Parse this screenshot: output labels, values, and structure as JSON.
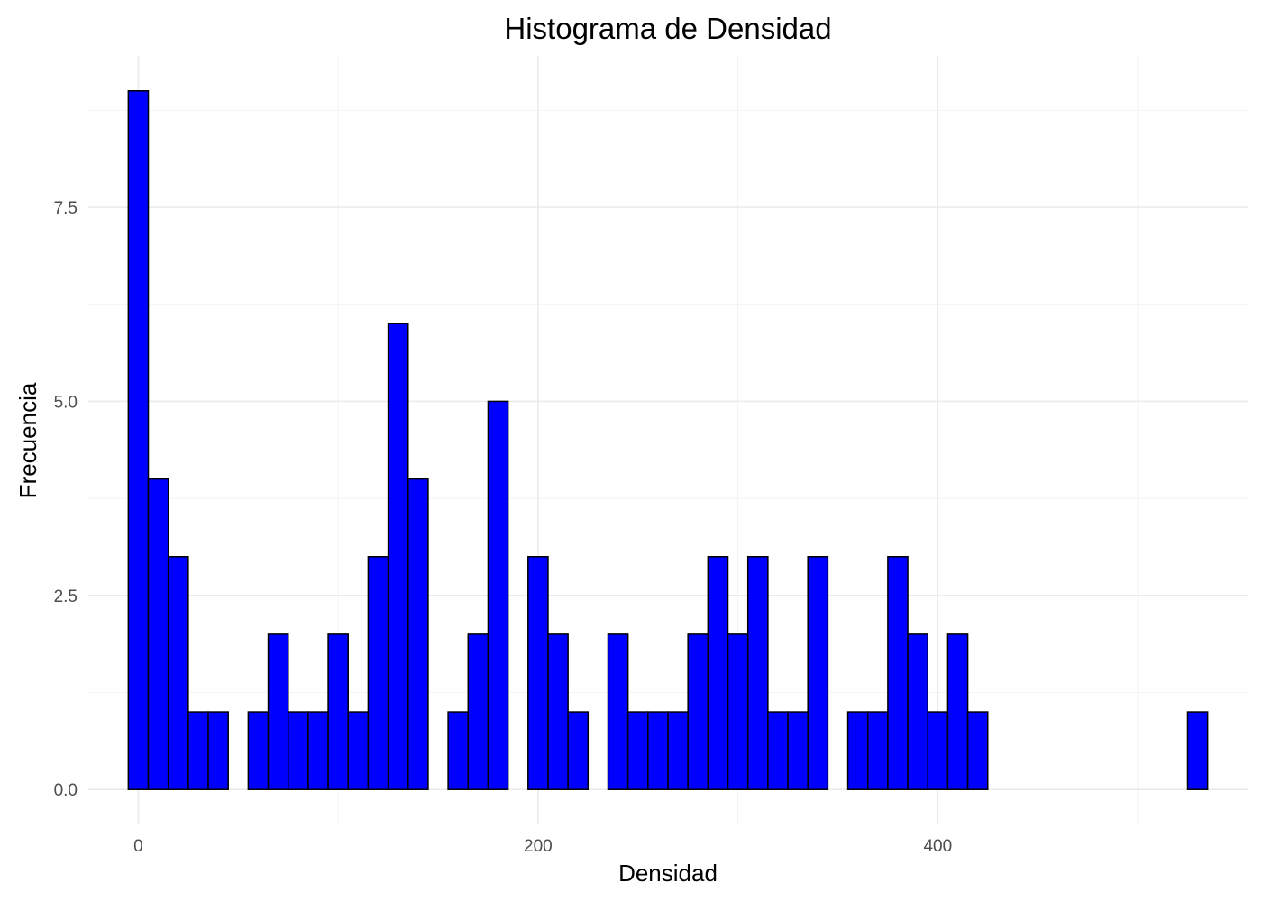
{
  "chart_data": {
    "type": "bar",
    "title": "Histograma de Densidad",
    "xlabel": "Densidad",
    "ylabel": "Frecuencia",
    "bin_width": 10,
    "bin_centers": [
      0,
      10,
      20,
      30,
      40,
      50,
      60,
      70,
      80,
      90,
      100,
      110,
      120,
      130,
      140,
      150,
      160,
      170,
      180,
      190,
      200,
      210,
      220,
      230,
      240,
      250,
      260,
      270,
      280,
      290,
      300,
      310,
      320,
      330,
      340,
      350,
      360,
      370,
      380,
      390,
      400,
      410,
      420,
      430,
      440,
      450,
      460,
      470,
      480,
      490,
      500,
      510,
      520,
      530
    ],
    "values": [
      9,
      4,
      3,
      1,
      1,
      0,
      1,
      2,
      1,
      1,
      2,
      1,
      3,
      6,
      4,
      0,
      1,
      2,
      5,
      0,
      3,
      2,
      1,
      0,
      2,
      1,
      1,
      1,
      2,
      3,
      2,
      3,
      1,
      1,
      3,
      0,
      1,
      1,
      3,
      2,
      1,
      2,
      1,
      0,
      0,
      0,
      0,
      0,
      0,
      0,
      0,
      0,
      0,
      1
    ],
    "xlim": [
      -25,
      555
    ],
    "ylim": [
      -0.45,
      9.45
    ],
    "x_ticks": [
      0,
      200,
      400
    ],
    "x_tick_labels": [
      "0",
      "200",
      "400"
    ],
    "x_minor_ticks": [
      100,
      300,
      500
    ],
    "y_ticks": [
      0,
      2.5,
      5,
      7.5
    ],
    "y_tick_labels": [
      "0.0",
      "2.5",
      "5.0",
      "7.5"
    ],
    "y_minor_ticks": [
      1.25,
      3.75,
      6.25,
      8.75
    ],
    "grid": true,
    "legend": "none",
    "colors": {
      "fill": "#0000FF",
      "outline": "#000000",
      "background": "#FFFFFF"
    }
  }
}
